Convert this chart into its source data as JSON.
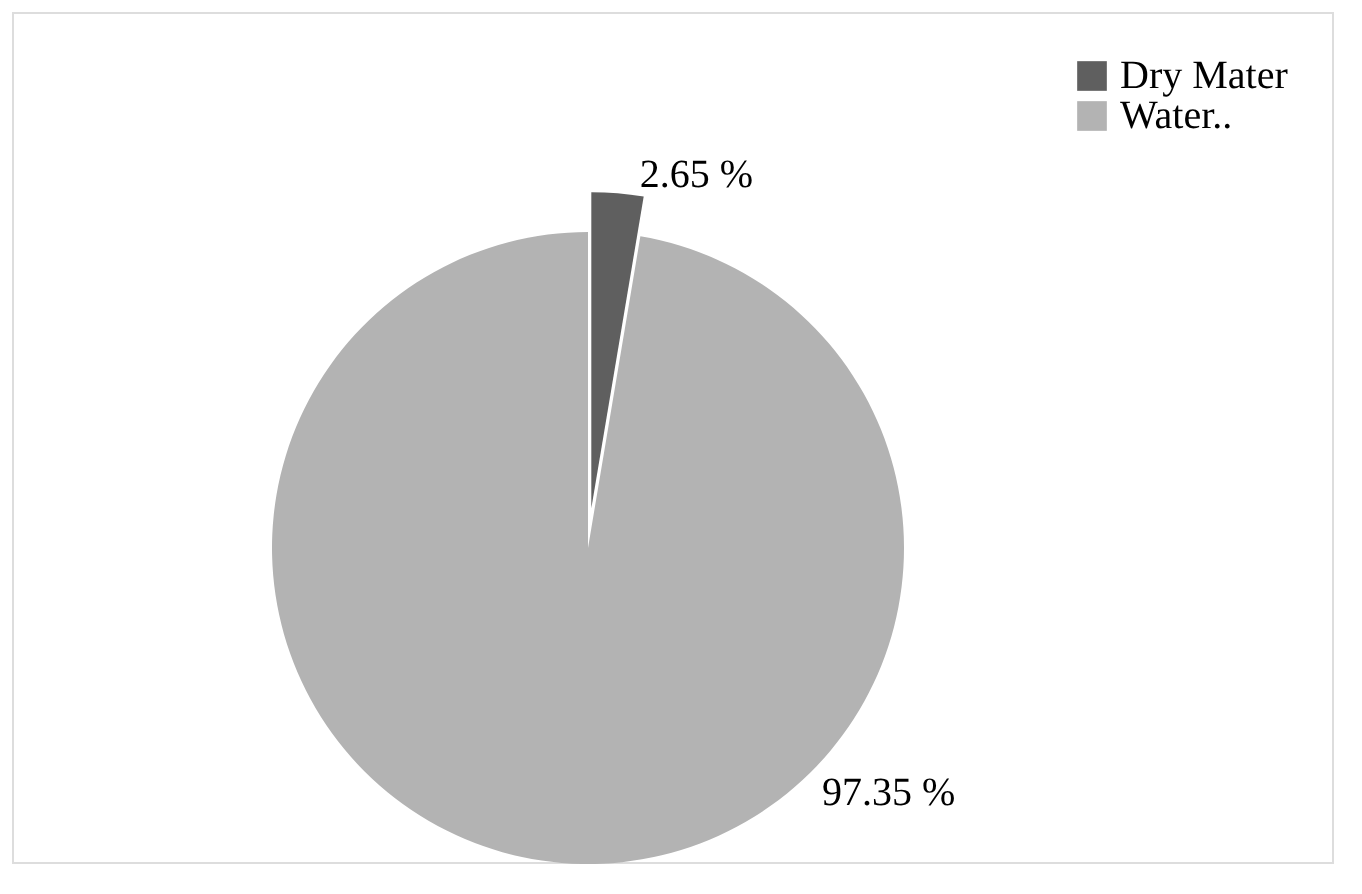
{
  "chart_data": {
    "type": "pie",
    "categories": [
      "Dry Mater",
      "Water.."
    ],
    "values": [
      2.65,
      97.35
    ],
    "colors": [
      "#5f5f5f",
      "#b3b3b3"
    ],
    "value_labels": [
      "2.65 %",
      "97.35 %"
    ],
    "legend": "top right"
  }
}
